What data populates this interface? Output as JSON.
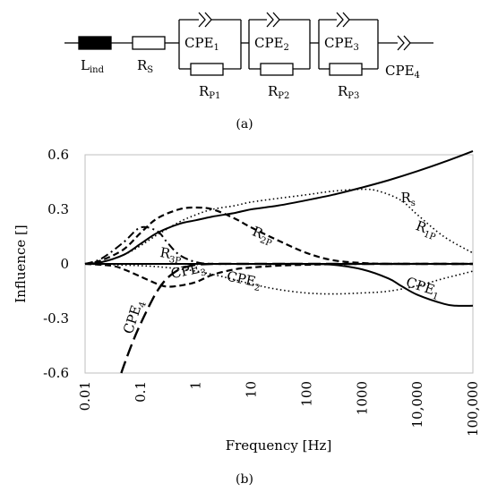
{
  "panel_a": {
    "label": "(a)",
    "components": {
      "inductor": "L",
      "inductor_sub": "ind",
      "series_resistor": "R",
      "series_resistor_sub": "S",
      "cpe1": "CPE",
      "cpe1_sub": "1",
      "cpe2": "CPE",
      "cpe2_sub": "2",
      "cpe3": "CPE",
      "cpe3_sub": "3",
      "cpe4": "CPE",
      "cpe4_sub": "4",
      "rp1": "R",
      "rp1_sub": "P1",
      "rp2": "R",
      "rp2_sub": "P2",
      "rp3": "R",
      "rp3_sub": "P3"
    }
  },
  "panel_b": {
    "label": "(b)"
  },
  "chart_data": {
    "type": "line",
    "xlabel": "Frequency [Hz]",
    "ylabel": "Influence []",
    "x_scale": "log",
    "xlim": [
      0.01,
      100000
    ],
    "ylim": [
      -0.6,
      0.6
    ],
    "x_ticks": [
      "0.01",
      "0.1",
      "1",
      "10",
      "100",
      "1000",
      "10,000",
      "100,000"
    ],
    "y_ticks": [
      "0.6",
      "0.3",
      "0",
      "-0.3",
      "-0.6"
    ],
    "grid": false,
    "legend": "none",
    "series": [
      {
        "name": "Rs",
        "label_main": "R",
        "label_sub": "s",
        "style": "solid",
        "x": [
          0.01,
          0.02,
          0.05,
          0.1,
          0.2,
          0.5,
          1,
          2,
          5,
          10,
          30,
          100,
          300,
          1000,
          3000,
          10000,
          30000,
          100000
        ],
        "y": [
          0.0,
          0.01,
          0.05,
          0.11,
          0.17,
          0.22,
          0.24,
          0.26,
          0.28,
          0.3,
          0.32,
          0.35,
          0.38,
          0.42,
          0.46,
          0.51,
          0.56,
          0.62
        ]
      },
      {
        "name": "R1P",
        "label_main": "R",
        "label_sub": "1P",
        "style": "dotted",
        "x": [
          0.01,
          0.02,
          0.05,
          0.1,
          0.2,
          0.5,
          1,
          2,
          5,
          10,
          30,
          100,
          300,
          1000,
          2000,
          5000,
          10000,
          30000,
          100000
        ],
        "y": [
          0.0,
          0.01,
          0.05,
          0.1,
          0.16,
          0.23,
          0.27,
          0.3,
          0.32,
          0.34,
          0.36,
          0.38,
          0.4,
          0.41,
          0.4,
          0.35,
          0.27,
          0.15,
          0.06
        ]
      },
      {
        "name": "R2P",
        "label_main": "R",
        "label_sub": "2P",
        "style": "dashed",
        "x": [
          0.01,
          0.02,
          0.05,
          0.1,
          0.2,
          0.5,
          1,
          2,
          5,
          10,
          30,
          100,
          300,
          1000,
          3000,
          10000,
          100000
        ],
        "y": [
          0.0,
          0.02,
          0.08,
          0.17,
          0.25,
          0.3,
          0.31,
          0.3,
          0.25,
          0.2,
          0.13,
          0.06,
          0.02,
          0.005,
          0.0,
          0.0,
          0.0
        ]
      },
      {
        "name": "R3P",
        "label_main": "R",
        "label_sub": "3P",
        "style": "dashdot",
        "x": [
          0.01,
          0.02,
          0.05,
          0.1,
          0.2,
          0.3,
          0.5,
          1,
          2,
          5,
          10,
          100,
          1000,
          100000
        ],
        "y": [
          0.0,
          0.03,
          0.12,
          0.2,
          0.18,
          0.12,
          0.05,
          0.01,
          0.0,
          0.0,
          0.0,
          0.0,
          0.0,
          0.0
        ]
      },
      {
        "name": "CPE1",
        "label_main": "CPE",
        "label_sub": "1",
        "style": "solid",
        "x": [
          0.01,
          0.1,
          1,
          10,
          100,
          300,
          1000,
          3000,
          5000,
          10000,
          30000,
          50000,
          100000
        ],
        "y": [
          0.0,
          0.0,
          0.0,
          0.0,
          0.0,
          -0.005,
          -0.03,
          -0.08,
          -0.12,
          -0.17,
          -0.22,
          -0.23,
          -0.23
        ]
      },
      {
        "name": "CPE2",
        "label_main": "CPE",
        "label_sub": "2",
        "style": "dotted",
        "x": [
          0.01,
          0.1,
          0.3,
          1,
          3,
          10,
          30,
          100,
          300,
          1000,
          3000,
          10000,
          30000,
          100000
        ],
        "y": [
          0.0,
          -0.01,
          -0.02,
          -0.04,
          -0.07,
          -0.11,
          -0.14,
          -0.16,
          -0.165,
          -0.16,
          -0.15,
          -0.12,
          -0.08,
          -0.04
        ]
      },
      {
        "name": "CPE3",
        "label_main": "CPE",
        "label_sub": "3",
        "style": "dashed",
        "x": [
          0.01,
          0.03,
          0.05,
          0.1,
          0.2,
          0.3,
          0.5,
          1,
          2,
          5,
          10,
          30,
          100,
          1000,
          100000
        ],
        "y": [
          0.0,
          -0.01,
          -0.03,
          -0.07,
          -0.11,
          -0.125,
          -0.12,
          -0.1,
          -0.06,
          -0.03,
          -0.02,
          -0.01,
          -0.005,
          0.0,
          0.0
        ]
      },
      {
        "name": "CPE4",
        "label_main": "CPE",
        "label_sub": "4",
        "style": "longdash",
        "x": [
          0.045,
          0.05,
          0.07,
          0.1,
          0.15,
          0.2,
          0.3,
          0.5,
          0.7,
          1,
          2,
          5,
          10,
          100,
          100000
        ],
        "y": [
          -0.6,
          -0.56,
          -0.44,
          -0.33,
          -0.22,
          -0.15,
          -0.08,
          -0.03,
          -0.015,
          -0.005,
          0.0,
          0.0,
          0.0,
          0.0,
          0.0
        ]
      }
    ]
  }
}
